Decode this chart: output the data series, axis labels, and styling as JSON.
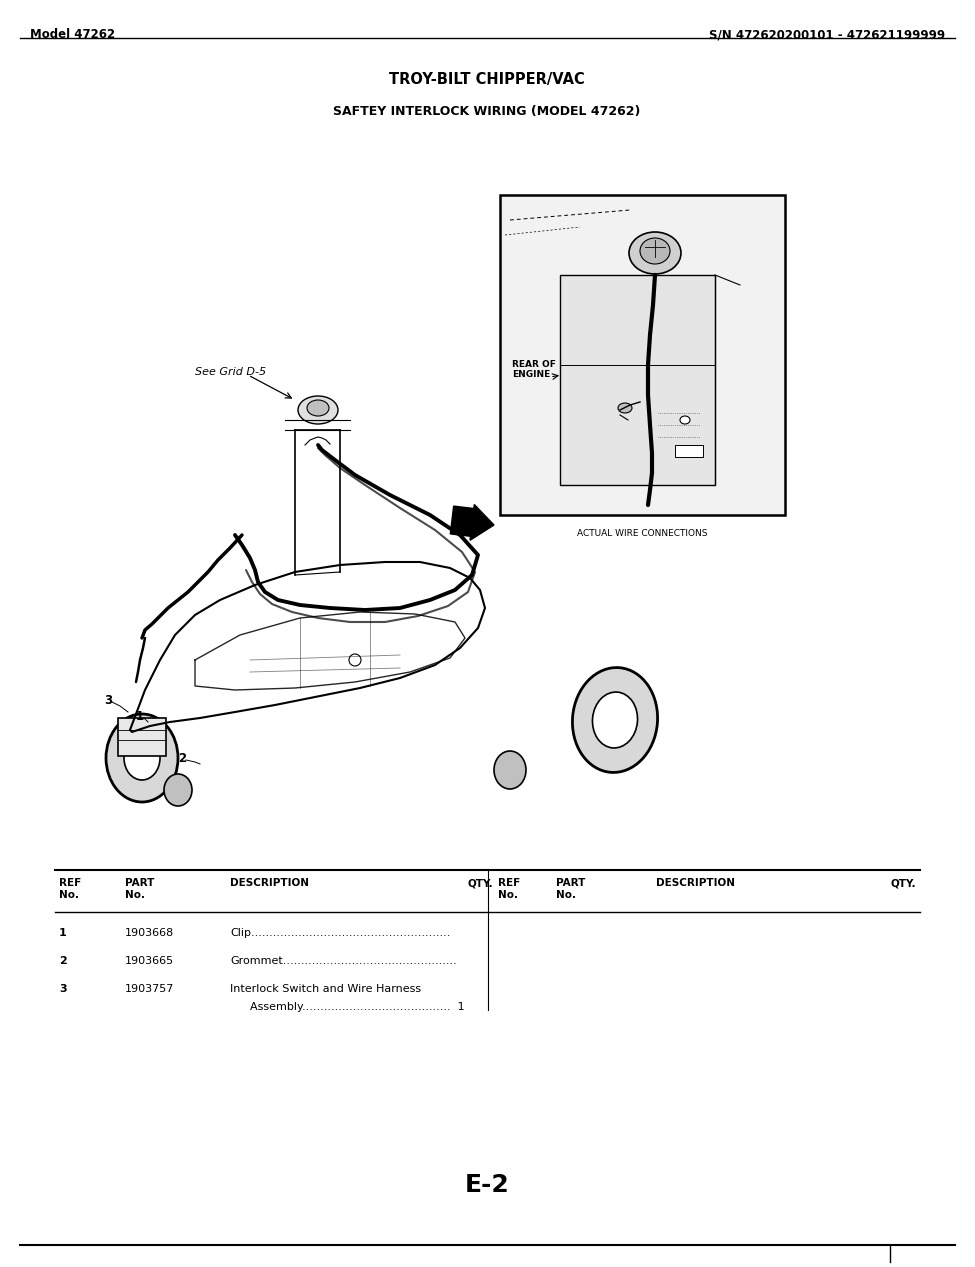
{
  "page_width": 9.75,
  "page_height": 12.67,
  "bg_color": "#ffffff",
  "header_left": "Model 47262",
  "header_right": "S/N 472620200101 - 472621199999",
  "title": "TROY-BILT CHIPPER/VAC",
  "subtitle": "SAFTEY INTERLOCK WIRING (MODEL 47262)",
  "page_number": "E-2",
  "diagram_note": "See Grid D-5",
  "inset_label": "ACTUAL WIRE CONNECTIONS",
  "inset_sublabel": "REAR OF\nENGINE",
  "parts": [
    {
      "ref": "1",
      "part": "1903668",
      "desc": "Clip.......................................................",
      "qty": ""
    },
    {
      "ref": "2",
      "part": "1903665",
      "desc": "Grommet................................................",
      "qty": ""
    },
    {
      "ref": "3",
      "part": "1903757",
      "desc1": "Interlock Switch and Wire Harness",
      "desc2": "Assembly.........................................  1",
      "qty": "1"
    }
  ]
}
